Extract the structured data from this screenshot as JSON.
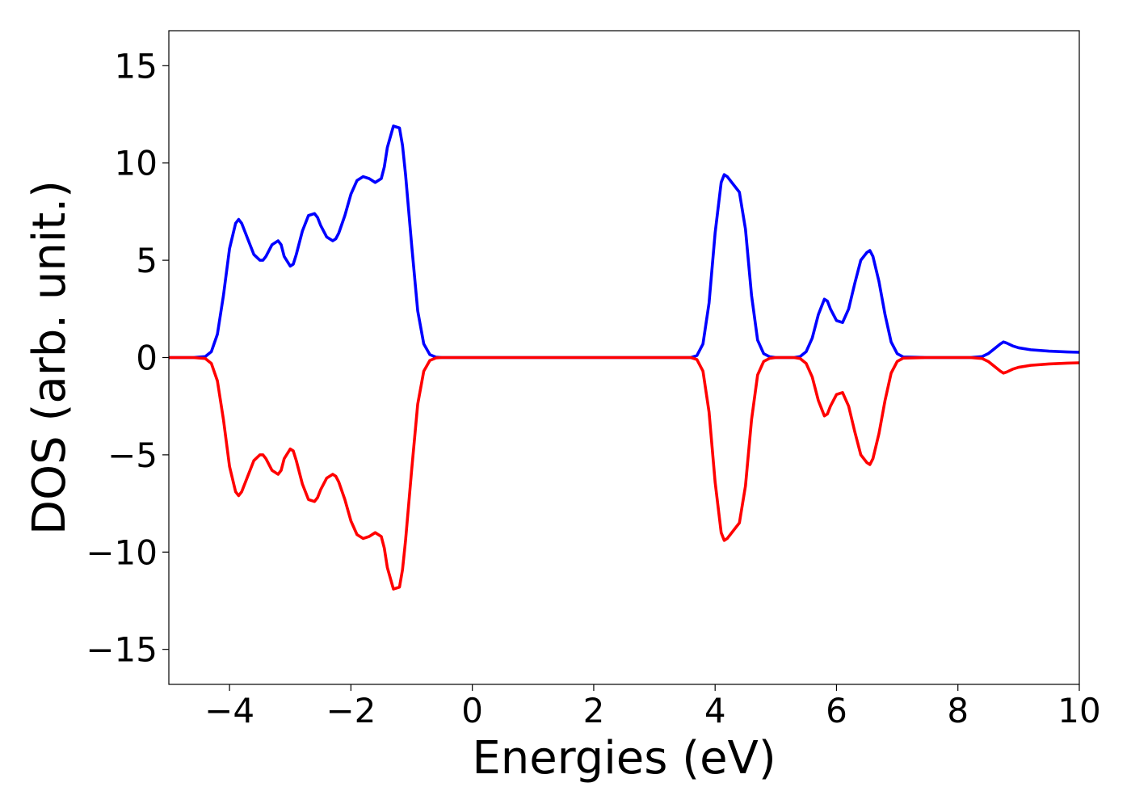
{
  "chart_data": {
    "type": "line",
    "title": "",
    "xlabel": "Energies (eV)",
    "ylabel": "DOS (arb. unit.)",
    "xlim": [
      -5,
      10
    ],
    "ylim": [
      -16.8,
      16.8
    ],
    "xticks": [
      -4,
      -2,
      0,
      2,
      4,
      6,
      8,
      10
    ],
    "xtick_labels": [
      "−4",
      "−2",
      "0",
      "2",
      "4",
      "6",
      "8",
      "10"
    ],
    "yticks": [
      15,
      10,
      5,
      0,
      -5,
      -10,
      -15
    ],
    "ytick_labels": [
      "15",
      "10",
      "5",
      "0",
      "−5",
      "−10",
      "−15"
    ],
    "grid": false,
    "legend": "none",
    "series": [
      {
        "color": "#0000ff",
        "x": [
          -5.0,
          -4.6,
          -4.4,
          -4.3,
          -4.2,
          -4.1,
          -4.0,
          -3.9,
          -3.85,
          -3.8,
          -3.7,
          -3.6,
          -3.5,
          -3.45,
          -3.4,
          -3.3,
          -3.2,
          -3.15,
          -3.1,
          -3.0,
          -2.95,
          -2.9,
          -2.8,
          -2.7,
          -2.6,
          -2.55,
          -2.5,
          -2.4,
          -2.3,
          -2.25,
          -2.2,
          -2.1,
          -2.0,
          -1.9,
          -1.8,
          -1.7,
          -1.6,
          -1.5,
          -1.45,
          -1.4,
          -1.3,
          -1.2,
          -1.15,
          -1.1,
          -1.0,
          -0.9,
          -0.8,
          -0.7,
          -0.6,
          -0.5,
          0.0,
          3.0,
          3.6,
          3.7,
          3.8,
          3.9,
          4.0,
          4.1,
          4.15,
          4.2,
          4.3,
          4.4,
          4.5,
          4.6,
          4.7,
          4.8,
          4.9,
          5.0,
          5.3,
          5.4,
          5.5,
          5.6,
          5.7,
          5.8,
          5.85,
          5.9,
          6.0,
          6.1,
          6.2,
          6.3,
          6.4,
          6.5,
          6.55,
          6.6,
          6.7,
          6.8,
          6.9,
          7.0,
          7.1,
          7.5,
          8.2,
          8.4,
          8.5,
          8.6,
          8.7,
          8.75,
          8.8,
          8.9,
          9.0,
          9.2,
          9.5,
          9.8,
          10.0
        ],
        "y": [
          0.0,
          0.0,
          0.05,
          0.3,
          1.2,
          3.2,
          5.6,
          6.9,
          7.1,
          6.9,
          6.1,
          5.3,
          5.0,
          5.0,
          5.2,
          5.8,
          6.0,
          5.8,
          5.2,
          4.7,
          4.8,
          5.3,
          6.5,
          7.3,
          7.4,
          7.2,
          6.8,
          6.2,
          6.0,
          6.1,
          6.4,
          7.3,
          8.4,
          9.1,
          9.3,
          9.2,
          9.0,
          9.2,
          9.8,
          10.8,
          11.9,
          11.8,
          10.9,
          9.4,
          5.8,
          2.4,
          0.7,
          0.15,
          0.02,
          0.0,
          0.0,
          0.0,
          0.0,
          0.1,
          0.7,
          2.8,
          6.4,
          9.0,
          9.4,
          9.3,
          8.9,
          8.5,
          6.6,
          3.2,
          0.9,
          0.2,
          0.04,
          0.0,
          0.0,
          0.05,
          0.3,
          1.0,
          2.2,
          3.0,
          2.9,
          2.5,
          1.9,
          1.8,
          2.5,
          3.8,
          5.0,
          5.4,
          5.5,
          5.2,
          3.9,
          2.2,
          0.8,
          0.2,
          0.03,
          0.0,
          0.0,
          0.05,
          0.2,
          0.45,
          0.7,
          0.8,
          0.75,
          0.6,
          0.5,
          0.4,
          0.33,
          0.29,
          0.27
        ]
      },
      {
        "color": "#ff0000",
        "x": [
          -5.0,
          -4.6,
          -4.4,
          -4.3,
          -4.2,
          -4.1,
          -4.0,
          -3.9,
          -3.85,
          -3.8,
          -3.7,
          -3.6,
          -3.5,
          -3.45,
          -3.4,
          -3.3,
          -3.2,
          -3.15,
          -3.1,
          -3.0,
          -2.95,
          -2.9,
          -2.8,
          -2.7,
          -2.6,
          -2.55,
          -2.5,
          -2.4,
          -2.3,
          -2.25,
          -2.2,
          -2.1,
          -2.0,
          -1.9,
          -1.8,
          -1.7,
          -1.6,
          -1.5,
          -1.45,
          -1.4,
          -1.3,
          -1.2,
          -1.15,
          -1.1,
          -1.0,
          -0.9,
          -0.8,
          -0.7,
          -0.6,
          -0.5,
          0.0,
          3.0,
          3.6,
          3.7,
          3.8,
          3.9,
          4.0,
          4.1,
          4.15,
          4.2,
          4.3,
          4.4,
          4.5,
          4.6,
          4.7,
          4.8,
          4.9,
          5.0,
          5.3,
          5.4,
          5.5,
          5.6,
          5.7,
          5.8,
          5.85,
          5.9,
          6.0,
          6.1,
          6.2,
          6.3,
          6.4,
          6.5,
          6.55,
          6.6,
          6.7,
          6.8,
          6.9,
          7.0,
          7.1,
          7.5,
          8.2,
          8.4,
          8.5,
          8.6,
          8.7,
          8.75,
          8.8,
          8.9,
          9.0,
          9.2,
          9.5,
          9.8,
          10.0
        ],
        "y": [
          0.0,
          0.0,
          -0.05,
          -0.3,
          -1.2,
          -3.2,
          -5.6,
          -6.9,
          -7.1,
          -6.9,
          -6.1,
          -5.3,
          -5.0,
          -5.0,
          -5.2,
          -5.8,
          -6.0,
          -5.8,
          -5.2,
          -4.7,
          -4.8,
          -5.3,
          -6.5,
          -7.3,
          -7.4,
          -7.2,
          -6.8,
          -6.2,
          -6.0,
          -6.1,
          -6.4,
          -7.3,
          -8.4,
          -9.1,
          -9.3,
          -9.2,
          -9.0,
          -9.2,
          -9.8,
          -10.8,
          -11.9,
          -11.8,
          -10.9,
          -9.4,
          -5.8,
          -2.4,
          -0.7,
          -0.15,
          -0.02,
          0.0,
          0.0,
          0.0,
          0.0,
          -0.1,
          -0.7,
          -2.8,
          -6.4,
          -9.0,
          -9.4,
          -9.3,
          -8.9,
          -8.5,
          -6.6,
          -3.2,
          -0.9,
          -0.2,
          -0.04,
          0.0,
          0.0,
          -0.05,
          -0.3,
          -1.0,
          -2.2,
          -3.0,
          -2.9,
          -2.5,
          -1.9,
          -1.8,
          -2.5,
          -3.8,
          -5.0,
          -5.4,
          -5.5,
          -5.2,
          -3.9,
          -2.2,
          -0.8,
          -0.2,
          -0.03,
          0.0,
          0.0,
          -0.05,
          -0.2,
          -0.45,
          -0.7,
          -0.8,
          -0.75,
          -0.6,
          -0.5,
          -0.4,
          -0.33,
          -0.29,
          -0.27
        ]
      }
    ]
  }
}
